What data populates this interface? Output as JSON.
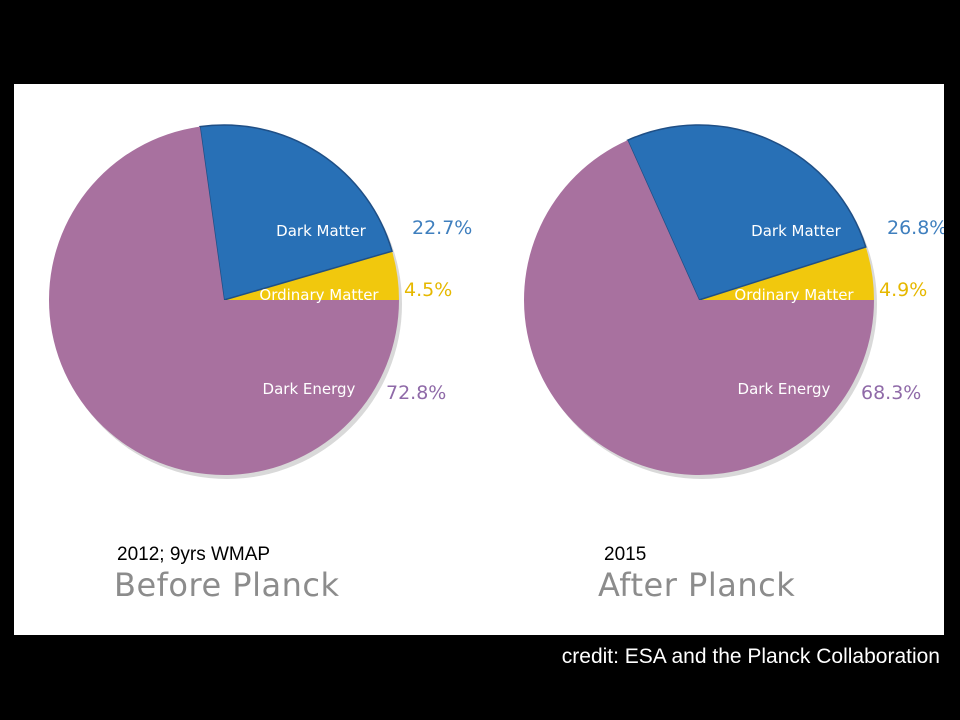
{
  "colors": {
    "dark_energy": "#a8719f",
    "dark_matter": "#2870b6",
    "ordinary_matter": "#f1c80d",
    "dark_energy_text": "#8f6aa8",
    "dark_matter_text": "#3f7fbe",
    "ordinary_matter_text": "#e6b800"
  },
  "chart_data": [
    {
      "type": "pie",
      "caption": "2012; 9yrs WMAP",
      "title": "Before Planck",
      "categories": [
        "Dark Matter",
        "Ordinary Matter",
        "Dark Energy"
      ],
      "values": [
        22.7,
        4.5,
        72.8
      ],
      "value_labels": [
        "22.7%",
        "4.5%",
        "72.8%"
      ]
    },
    {
      "type": "pie",
      "caption": "2015",
      "title": "After Planck",
      "categories": [
        "Dark Matter",
        "Ordinary Matter",
        "Dark Energy"
      ],
      "values": [
        26.8,
        4.9,
        68.3
      ],
      "value_labels": [
        "26.8%",
        "4.9%",
        "68.3%"
      ]
    }
  ],
  "credit": "credit: ESA and the Planck Collaboration"
}
